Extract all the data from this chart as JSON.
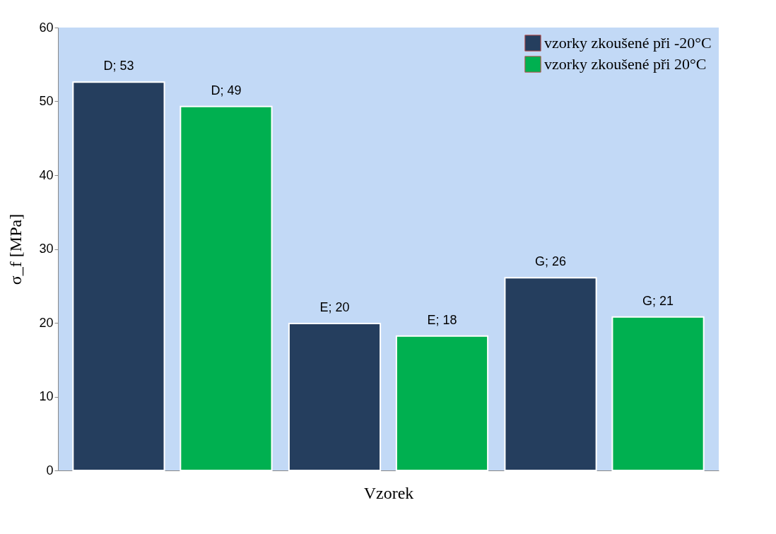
{
  "chart_data": {
    "type": "bar",
    "xlabel": "Vzorek",
    "ylabel": "σ_f [MPa]",
    "categories": [
      null,
      null,
      null
    ],
    "series": [
      {
        "name": "vzorky zkoušené při -20°C",
        "color": "#253e5e",
        "values": [
          52.6,
          19.9,
          26.1
        ],
        "value_labels": [
          "D; 53",
          "E; 20",
          "G; 26"
        ]
      },
      {
        "name": "vzorky zkoušené při 20°C",
        "color": "#00b050",
        "values": [
          49.3,
          18.2,
          20.8
        ],
        "value_labels": [
          "D; 49",
          "E; 18",
          "G; 21"
        ]
      }
    ],
    "ylim": [
      0,
      60
    ],
    "yticks": [
      0,
      10,
      20,
      30,
      40,
      50,
      60
    ],
    "grid": false,
    "legend": "top right"
  }
}
